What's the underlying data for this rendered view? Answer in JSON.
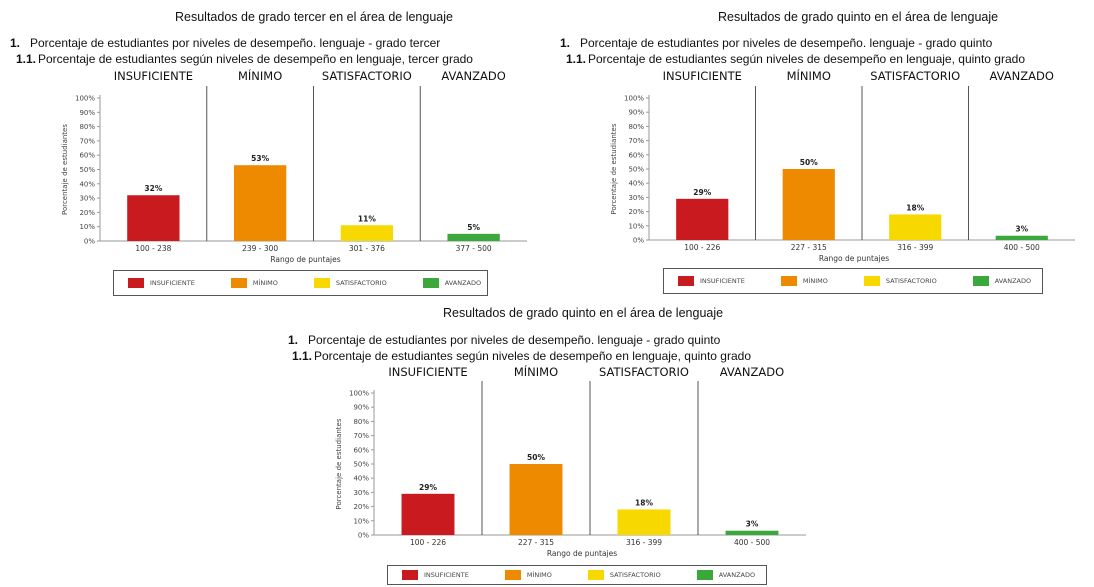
{
  "levels": [
    {
      "name": "INSUFICIENTE",
      "color": "#c91a1f"
    },
    {
      "name": "MÍNIMO",
      "color": "#ee8a00"
    },
    {
      "name": "SATISFACTORIO",
      "color": "#f7d800"
    },
    {
      "name": "AVANZADO",
      "color": "#3aa83a"
    }
  ],
  "chart_data": [
    {
      "type": "bar",
      "title": "Resultados de grado tercer en el área de lenguaje",
      "heading_num": "1.",
      "heading": "Porcentaje de estudiantes por niveles de desempeño. lenguaje - grado tercer",
      "subheading_num": "1.1.",
      "subheading": "Porcentaje de estudiantes según niveles de desempeño en lenguaje, tercer grado",
      "categories": [
        "100 - 238",
        "239 - 300",
        "301 - 376",
        "377 - 500"
      ],
      "values": [
        32,
        53,
        11,
        5
      ],
      "value_labels": [
        "32%",
        "53%",
        "11%",
        "5%"
      ],
      "yticks": [
        "0%",
        "10%",
        "20%",
        "30%",
        "40%",
        "50%",
        "60%",
        "70%",
        "80%",
        "90%",
        "100%"
      ],
      "ylim": [
        0,
        100
      ],
      "xlabel": "Rango de puntajes",
      "ylabel": "Porcentaje de estudiantes",
      "series_names": [
        "INSUFICIENTE",
        "MÍNIMO",
        "SATISFACTORIO",
        "AVANZADO"
      ]
    },
    {
      "type": "bar",
      "title": "Resultados de grado quinto en el área de lenguaje",
      "heading_num": "1.",
      "heading": "Porcentaje de estudiantes por niveles de desempeño. lenguaje - grado quinto",
      "subheading_num": "1.1.",
      "subheading": "Porcentaje de estudiantes según niveles de desempeño en lenguaje, quinto grado",
      "categories": [
        "100 - 226",
        "227 - 315",
        "316 - 399",
        "400 - 500"
      ],
      "values": [
        29,
        50,
        18,
        3
      ],
      "value_labels": [
        "29%",
        "50%",
        "18%",
        "3%"
      ],
      "yticks": [
        "0%",
        "10%",
        "20%",
        "30%",
        "40%",
        "50%",
        "60%",
        "70%",
        "80%",
        "90%",
        "100%"
      ],
      "ylim": [
        0,
        100
      ],
      "xlabel": "Rango de puntajes",
      "ylabel": "Porcentaje de estudiantes",
      "series_names": [
        "INSUFICIENTE",
        "MÍNIMO",
        "SATISFACTORIO",
        "AVANZADO"
      ]
    },
    {
      "type": "bar",
      "title": "Resultados de grado quinto en el área de lenguaje",
      "heading_num": "1.",
      "heading": "Porcentaje de estudiantes por niveles de desempeño. lenguaje - grado quinto",
      "subheading_num": "1.1.",
      "subheading": "Porcentaje de estudiantes según niveles de desempeño en lenguaje, quinto grado",
      "categories": [
        "100 - 226",
        "227 - 315",
        "316 - 399",
        "400 - 500"
      ],
      "values": [
        29,
        50,
        18,
        3
      ],
      "value_labels": [
        "29%",
        "50%",
        "18%",
        "3%"
      ],
      "yticks": [
        "0%",
        "10%",
        "20%",
        "30%",
        "40%",
        "50%",
        "60%",
        "70%",
        "80%",
        "90%",
        "100%"
      ],
      "ylim": [
        0,
        100
      ],
      "xlabel": "Rango de puntajes",
      "ylabel": "Porcentaje de estudiantes",
      "series_names": [
        "INSUFICIENTE",
        "MÍNIMO",
        "SATISFACTORIO",
        "AVANZADO"
      ]
    }
  ]
}
